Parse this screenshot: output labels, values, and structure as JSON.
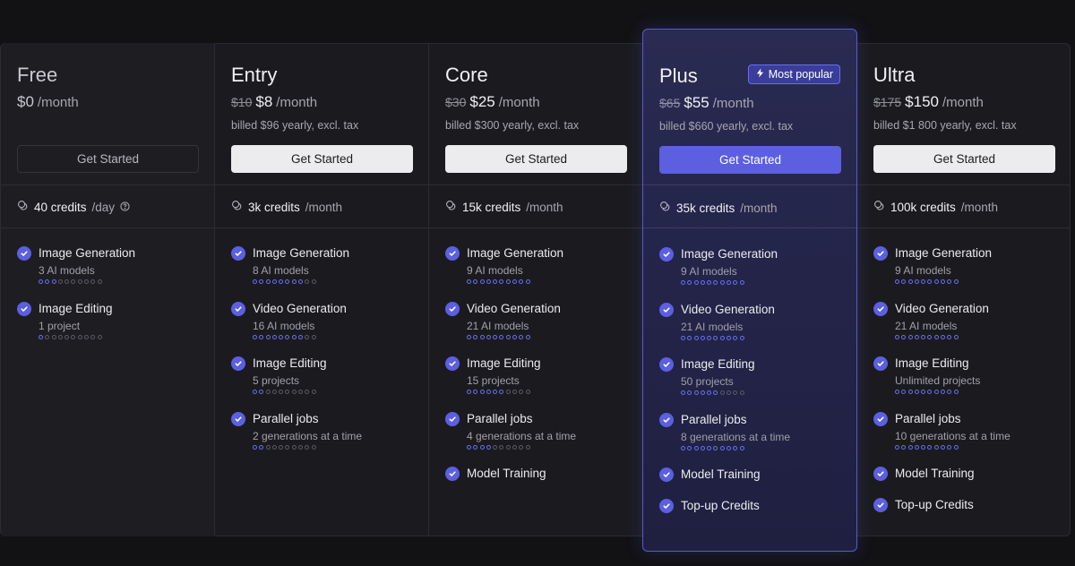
{
  "plans": [
    {
      "key": "free",
      "name": "Free",
      "old_price": "",
      "price": "$0",
      "period": "/month",
      "billed": "",
      "button": "Get Started",
      "credits_value": "40 credits",
      "credits_unit": "/day",
      "features": [
        {
          "title": "Image Generation",
          "sub": "3 AI models",
          "dots_on": 3,
          "dots_total": 10
        },
        {
          "title": "Image Editing",
          "sub": "1 project",
          "dots_on": 1,
          "dots_total": 10
        }
      ]
    },
    {
      "key": "entry",
      "name": "Entry",
      "old_price": "$10",
      "price": "$8",
      "period": "/month",
      "billed": "billed $96 yearly, excl. tax",
      "button": "Get Started",
      "credits_value": "3k credits",
      "credits_unit": "/month",
      "features": [
        {
          "title": "Image Generation",
          "sub": "8 AI models",
          "dots_on": 8,
          "dots_total": 10
        },
        {
          "title": "Video Generation",
          "sub": "16 AI models",
          "dots_on": 8,
          "dots_total": 10
        },
        {
          "title": "Image Editing",
          "sub": "5 projects",
          "dots_on": 2,
          "dots_total": 10
        },
        {
          "title": "Parallel jobs",
          "sub": "2 generations at a time",
          "dots_on": 2,
          "dots_total": 10
        }
      ]
    },
    {
      "key": "core",
      "name": "Core",
      "old_price": "$30",
      "price": "$25",
      "period": "/month",
      "billed": "billed $300 yearly, excl. tax",
      "button": "Get Started",
      "credits_value": "15k credits",
      "credits_unit": "/month",
      "features": [
        {
          "title": "Image Generation",
          "sub": "9 AI models",
          "dots_on": 10,
          "dots_total": 10
        },
        {
          "title": "Video Generation",
          "sub": "21 AI models",
          "dots_on": 10,
          "dots_total": 10
        },
        {
          "title": "Image Editing",
          "sub": "15 projects",
          "dots_on": 6,
          "dots_total": 10
        },
        {
          "title": "Parallel jobs",
          "sub": "4 generations at a time",
          "dots_on": 4,
          "dots_total": 10
        },
        {
          "title": "Model Training",
          "sub": "",
          "dots_on": 0,
          "dots_total": 0
        }
      ]
    },
    {
      "key": "plus",
      "name": "Plus",
      "badge": "Most popular",
      "old_price": "$65",
      "price": "$55",
      "period": "/month",
      "billed": "billed $660 yearly, excl. tax",
      "button": "Get Started",
      "credits_value": "35k credits",
      "credits_unit": "/month",
      "features": [
        {
          "title": "Image Generation",
          "sub": "9 AI models",
          "dots_on": 10,
          "dots_total": 10
        },
        {
          "title": "Video Generation",
          "sub": "21 AI models",
          "dots_on": 10,
          "dots_total": 10
        },
        {
          "title": "Image Editing",
          "sub": "50 projects",
          "dots_on": 6,
          "dots_total": 10
        },
        {
          "title": "Parallel jobs",
          "sub": "8 generations at a time",
          "dots_on": 10,
          "dots_total": 10
        },
        {
          "title": "Model Training",
          "sub": "",
          "dots_on": 0,
          "dots_total": 0
        },
        {
          "title": "Top-up Credits",
          "sub": "",
          "dots_on": 0,
          "dots_total": 0
        }
      ]
    },
    {
      "key": "ultra",
      "name": "Ultra",
      "old_price": "$175",
      "price": "$150",
      "period": "/month",
      "billed": "billed $1 800 yearly, excl. tax",
      "button": "Get Started",
      "credits_value": "100k credits",
      "credits_unit": "/month",
      "features": [
        {
          "title": "Image Generation",
          "sub": "9 AI models",
          "dots_on": 10,
          "dots_total": 10
        },
        {
          "title": "Video Generation",
          "sub": "21 AI models",
          "dots_on": 10,
          "dots_total": 10
        },
        {
          "title": "Image Editing",
          "sub": "Unlimited projects",
          "dots_on": 10,
          "dots_total": 10
        },
        {
          "title": "Parallel jobs",
          "sub": "10 generations at a time",
          "dots_on": 10,
          "dots_total": 10
        },
        {
          "title": "Model Training",
          "sub": "",
          "dots_on": 0,
          "dots_total": 0
        },
        {
          "title": "Top-up Credits",
          "sub": "",
          "dots_on": 0,
          "dots_total": 0
        }
      ]
    }
  ],
  "colors": {
    "accent": "#5b5fe0",
    "background": "#121215",
    "card": "#1b1b1f"
  },
  "icons": {
    "credits": "coins-icon",
    "help": "question-circle-icon",
    "check": "check-circle-icon",
    "badge": "lightning-icon"
  }
}
